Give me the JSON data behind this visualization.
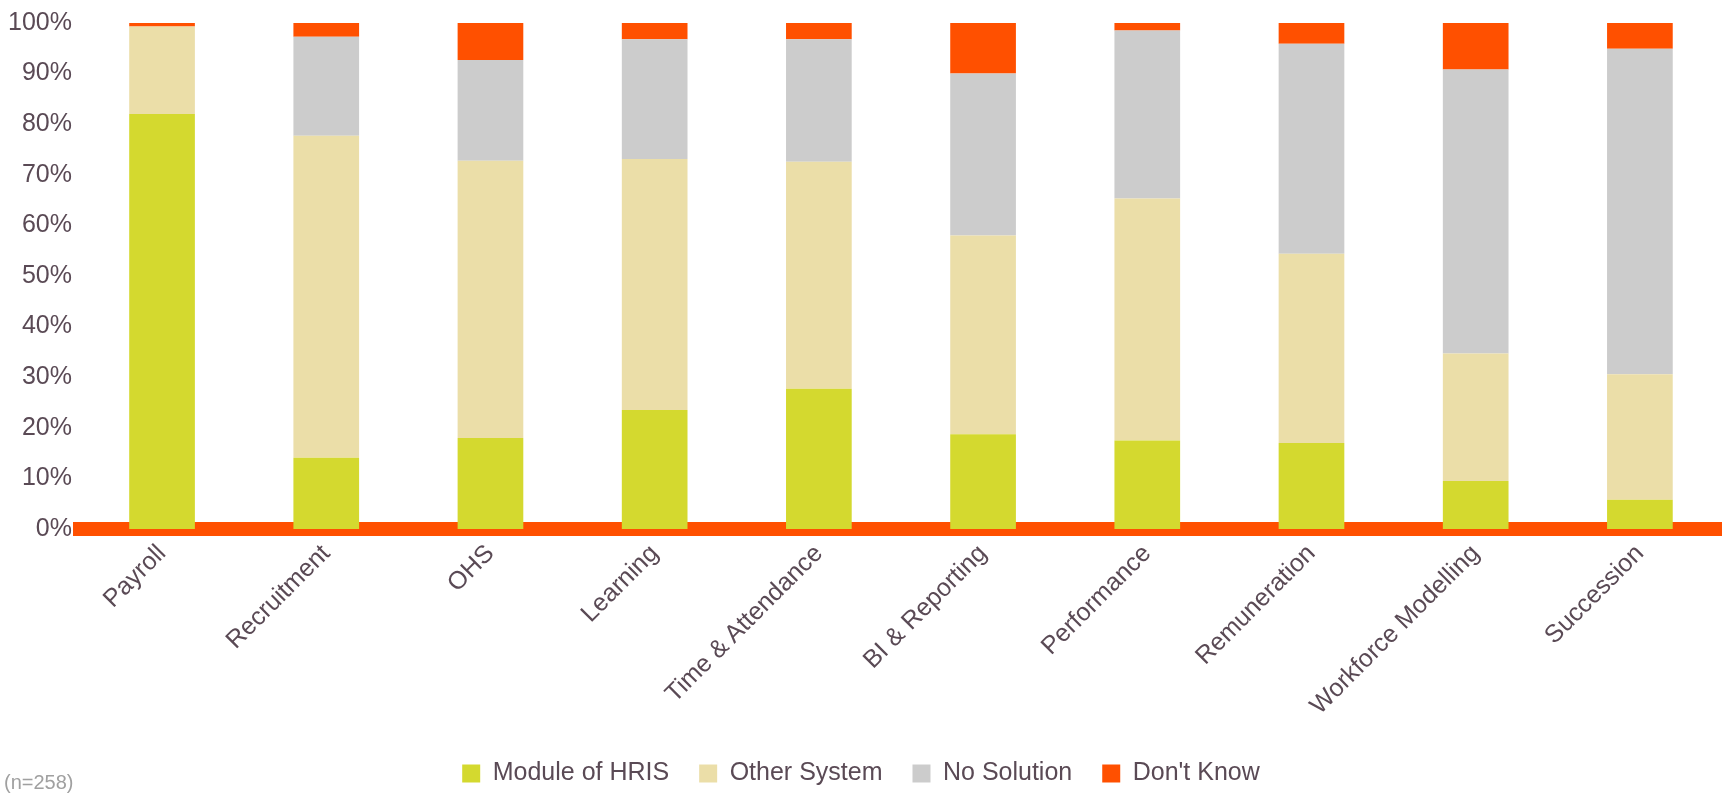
{
  "chart_data": {
    "type": "bar",
    "stacked": true,
    "categories": [
      "Payroll",
      "Recruitment",
      "OHS",
      "Learning",
      "Time & Attendance",
      "BI & Reporting",
      "Performance",
      "Remuneration",
      "Workforce Modelling",
      "Succession"
    ],
    "series": [
      {
        "name": "Module of HRIS",
        "color": "#d4d92f",
        "values": [
          82,
          14.1,
          18,
          23.5,
          27.7,
          18.7,
          17.5,
          17,
          9.5,
          5.8
        ]
      },
      {
        "name": "Other System",
        "color": "#ebdea8",
        "values": [
          17.3,
          63.6,
          54.8,
          49.6,
          44.9,
          39.3,
          47.8,
          37.4,
          25.2,
          24.8
        ]
      },
      {
        "name": "No Solution",
        "color": "#cccccc",
        "values": [
          0,
          19.6,
          19.9,
          23.7,
          24.2,
          32,
          33.2,
          41.5,
          56.1,
          64.3
        ]
      },
      {
        "name": "Don't Know",
        "color": "#ff5000",
        "values": [
          0.7,
          2.7,
          7.3,
          3.2,
          3.2,
          10,
          1.5,
          4.1,
          9.2,
          5.1
        ]
      }
    ],
    "ylim": [
      0,
      100
    ],
    "yticks": [
      {
        "value": 0,
        "label": "0%"
      },
      {
        "value": 10,
        "label": "10%"
      },
      {
        "value": 20,
        "label": "20%"
      },
      {
        "value": 30,
        "label": "30%"
      },
      {
        "value": 40,
        "label": "40%"
      },
      {
        "value": 50,
        "label": "50%"
      },
      {
        "value": 60,
        "label": "60%"
      },
      {
        "value": 70,
        "label": "70%"
      },
      {
        "value": 80,
        "label": "80%"
      },
      {
        "value": 90,
        "label": "90%"
      },
      {
        "value": 100,
        "label": "100%"
      }
    ],
    "grid": false,
    "legend": "bottom",
    "annotations": [
      "(n=258)"
    ]
  }
}
